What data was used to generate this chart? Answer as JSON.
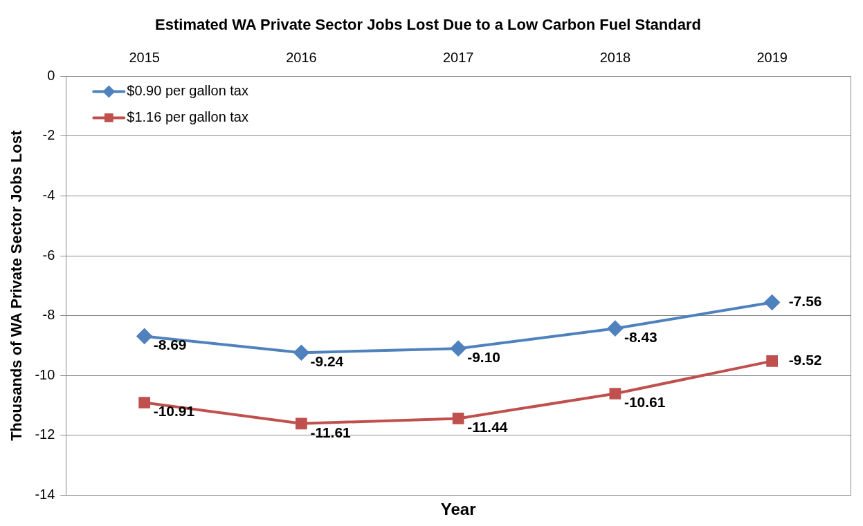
{
  "chart_data": {
    "type": "line",
    "title": "Estimated WA Private Sector Jobs Lost Due to a Low Carbon Fuel Standard",
    "xlabel": "Year",
    "ylabel": "Thousands of WA Private Sector Jobs Lost",
    "categories": [
      "2015",
      "2016",
      "2017",
      "2018",
      "2019"
    ],
    "series": [
      {
        "name": "$0.90 per gallon tax",
        "color": "#4f81bd",
        "marker": "diamond",
        "values": [
          -8.69,
          -9.24,
          -9.1,
          -8.43,
          -7.56
        ],
        "value_labels": [
          "-8.69",
          "-9.24",
          "-9.10",
          "-8.43",
          "-7.56"
        ]
      },
      {
        "name": "$1.16 per gallon tax",
        "color": "#c0504d",
        "marker": "square",
        "values": [
          -10.91,
          -11.61,
          -11.44,
          -10.61,
          -9.52
        ],
        "value_labels": [
          "-10.91",
          "-11.61",
          "-11.44",
          "-10.61",
          "-9.52"
        ]
      }
    ],
    "ylim": [
      -14,
      0
    ],
    "yticks": [
      0,
      -2,
      -4,
      -6,
      -8,
      -10,
      -12,
      -14
    ],
    "grid": "y",
    "legend": "top left"
  }
}
